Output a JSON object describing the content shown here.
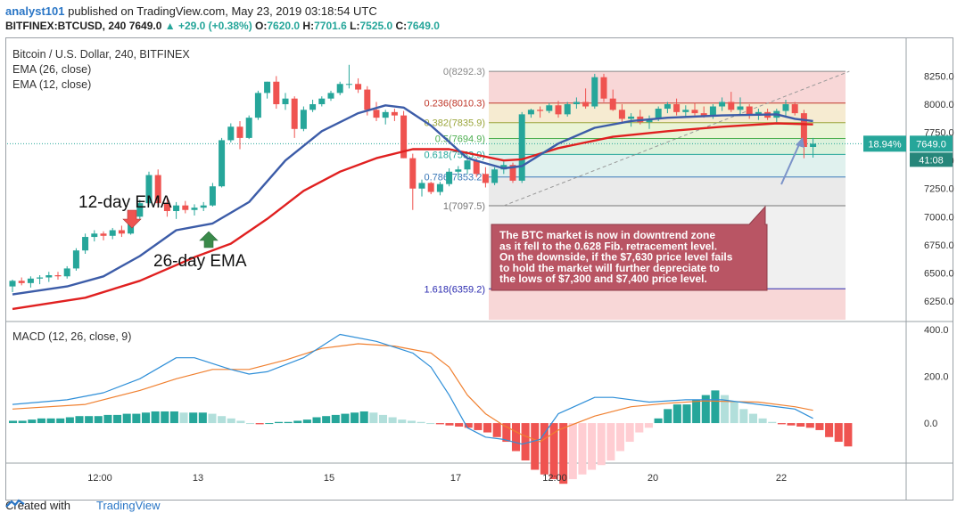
{
  "header": {
    "user": "analyst101",
    "published_text": "published on TradingView.com, May 23, 2019 03:18:54 UTC",
    "symbol": "BITFINEX:BTCUSD, 240",
    "price": "7649.0",
    "change": "▲ +29.0 (+0.38%)",
    "o_label": "O:",
    "o": "7620.0",
    "h_label": "H:",
    "h": "7701.6",
    "l_label": "L:",
    "l": "7525.0",
    "c_label": "C:",
    "c": "7649.0"
  },
  "legend": {
    "title": "Bitcoin / U.S. Dollar, 240, BITFINEX",
    "ema26": "EMA (26, close)",
    "ema12": "EMA (12, close)",
    "macd": "MACD (12, 26, close, 9)"
  },
  "annotations": {
    "ema12_label": "12-day EMA",
    "ema26_label": "26-day EMA",
    "note": [
      "The BTC market is now in downtrend zone",
      " as it fell to the 0.628 Fib. retracement level.",
      "On the downside, if the $7,630 price level fails",
      "to hold the market will further depreciate to",
      "the lows of $7,300 and $7,400 price level."
    ]
  },
  "badges": {
    "percent": "18.94%",
    "price": "7649.0",
    "timer": "41:08"
  },
  "footer": {
    "created_with": "Created with",
    "brand": "TradingView"
  },
  "colors": {
    "up": "#26a69a",
    "down": "#ef5350",
    "ema12": "#3c5ca8",
    "ema26": "#e02020",
    "macd_line": "#2f8fd8",
    "signal_line": "#f08030",
    "note_bg": "#b95564"
  },
  "chart_data": [
    {
      "type": "candlestick",
      "title": "Bitcoin / U.S. Dollar, 240, BITFINEX",
      "ylim": [
        6100,
        8380
      ],
      "y_ticks": [
        8250,
        8000,
        7750,
        7500,
        7250,
        7000,
        6750,
        6500,
        6250
      ],
      "y_tick_labels": [
        "8250.0",
        "8000.0",
        "7750.0",
        "7500.0",
        "7250.0",
        "7000.0",
        "6750.0",
        "6500.0",
        "6250.0"
      ],
      "x_tick_labels": [
        "12:00",
        "13",
        "15",
        "17",
        "12:00",
        "20",
        "22"
      ],
      "candles": [
        [
          6380,
          6440,
          6330,
          6430
        ],
        [
          6430,
          6460,
          6390,
          6410
        ],
        [
          6410,
          6470,
          6370,
          6450
        ],
        [
          6450,
          6480,
          6400,
          6460
        ],
        [
          6460,
          6510,
          6420,
          6480
        ],
        [
          6480,
          6510,
          6440,
          6470
        ],
        [
          6470,
          6560,
          6450,
          6540
        ],
        [
          6540,
          6720,
          6520,
          6700
        ],
        [
          6700,
          6850,
          6670,
          6820
        ],
        [
          6820,
          6880,
          6780,
          6850
        ],
        [
          6850,
          6870,
          6790,
          6830
        ],
        [
          6830,
          6900,
          6800,
          6880
        ],
        [
          6880,
          6920,
          6820,
          6850
        ],
        [
          6850,
          7030,
          6840,
          7000
        ],
        [
          7000,
          7150,
          6980,
          7120
        ],
        [
          7120,
          7400,
          7100,
          7370
        ],
        [
          7370,
          7420,
          7080,
          7120
        ],
        [
          7120,
          7180,
          7000,
          7050
        ],
        [
          7050,
          7130,
          6980,
          7100
        ],
        [
          7100,
          7140,
          7030,
          7060
        ],
        [
          7060,
          7110,
          7010,
          7080
        ],
        [
          7080,
          7130,
          7050,
          7100
        ],
        [
          7100,
          7300,
          7090,
          7270
        ],
        [
          7270,
          7700,
          7260,
          7680
        ],
        [
          7680,
          7830,
          7660,
          7800
        ],
        [
          7800,
          7850,
          7600,
          7700
        ],
        [
          7700,
          7900,
          7690,
          7880
        ],
        [
          7880,
          8120,
          7860,
          8100
        ],
        [
          8100,
          8200,
          8050,
          8200
        ],
        [
          8200,
          8250,
          7960,
          8000
        ],
        [
          8000,
          8100,
          7950,
          8050
        ],
        [
          8050,
          8070,
          7700,
          7780
        ],
        [
          7780,
          7980,
          7760,
          7950
        ],
        [
          7950,
          8040,
          7930,
          8000
        ],
        [
          8000,
          8070,
          7980,
          8050
        ],
        [
          8050,
          8120,
          8030,
          8100
        ],
        [
          8100,
          8200,
          8080,
          8180
        ],
        [
          8180,
          8350,
          8140,
          8180
        ],
        [
          8180,
          8230,
          8100,
          8130
        ],
        [
          8130,
          8160,
          7900,
          7950
        ],
        [
          7950,
          8020,
          7850,
          7880
        ],
        [
          7880,
          7950,
          7820,
          7930
        ],
        [
          7930,
          7960,
          7850,
          7900
        ],
        [
          7900,
          7940,
          7520,
          7520
        ],
        [
          7520,
          7560,
          7060,
          7250
        ],
        [
          7250,
          7330,
          7180,
          7300
        ],
        [
          7300,
          7310,
          7200,
          7220
        ],
        [
          7220,
          7310,
          7190,
          7290
        ],
        [
          7290,
          7430,
          7270,
          7400
        ],
        [
          7400,
          7450,
          7340,
          7420
        ],
        [
          7420,
          7520,
          7380,
          7500
        ],
        [
          7500,
          7520,
          7350,
          7380
        ],
        [
          7380,
          7440,
          7260,
          7300
        ],
        [
          7300,
          7440,
          7280,
          7420
        ],
        [
          7420,
          7490,
          7380,
          7460
        ],
        [
          7460,
          7480,
          7300,
          7320
        ],
        [
          7320,
          7930,
          7300,
          7910
        ],
        [
          7910,
          7960,
          7880,
          7950
        ],
        [
          7950,
          7980,
          7880,
          7940
        ],
        [
          7940,
          8010,
          7920,
          7990
        ],
        [
          7990,
          8030,
          7880,
          7910
        ],
        [
          7910,
          8020,
          7890,
          8000
        ],
        [
          8000,
          8060,
          7960,
          8020
        ],
        [
          8020,
          8140,
          7960,
          7980
        ],
        [
          7980,
          8270,
          7960,
          8240
        ],
        [
          8240,
          8270,
          8020,
          8050
        ],
        [
          8050,
          8130,
          7940,
          7950
        ],
        [
          7950,
          8000,
          7840,
          7870
        ],
        [
          7870,
          7920,
          7800,
          7890
        ],
        [
          7890,
          7950,
          7820,
          7840
        ],
        [
          7840,
          7900,
          7780,
          7870
        ],
        [
          7870,
          7980,
          7850,
          7960
        ],
        [
          7960,
          8020,
          7920,
          8000
        ],
        [
          8000,
          8050,
          7900,
          7930
        ],
        [
          7930,
          7990,
          7880,
          7950
        ],
        [
          7950,
          8010,
          7900,
          7920
        ],
        [
          7920,
          7980,
          7880,
          7900
        ],
        [
          7900,
          8000,
          7870,
          7980
        ],
        [
          7980,
          8060,
          7940,
          8020
        ],
        [
          8020,
          8110,
          7930,
          7950
        ],
        [
          7950,
          8060,
          7900,
          7980
        ],
        [
          7980,
          8000,
          7870,
          7900
        ],
        [
          7900,
          7960,
          7860,
          7930
        ],
        [
          7930,
          7960,
          7860,
          7880
        ],
        [
          7880,
          7960,
          7840,
          7940
        ],
        [
          7940,
          8040,
          7880,
          8000
        ],
        [
          8000,
          8020,
          7900,
          7920
        ],
        [
          7920,
          7950,
          7520,
          7620
        ],
        [
          7620,
          7700,
          7525,
          7649
        ]
      ],
      "ema12": [
        [
          0,
          6310
        ],
        [
          6,
          6380
        ],
        [
          10,
          6470
        ],
        [
          14,
          6650
        ],
        [
          18,
          6880
        ],
        [
          22,
          6940
        ],
        [
          26,
          7130
        ],
        [
          30,
          7500
        ],
        [
          34,
          7760
        ],
        [
          38,
          7920
        ],
        [
          41,
          7990
        ],
        [
          43,
          7970
        ],
        [
          46,
          7810
        ],
        [
          50,
          7520
        ],
        [
          54,
          7430
        ],
        [
          56,
          7450
        ],
        [
          60,
          7650
        ],
        [
          64,
          7790
        ],
        [
          68,
          7850
        ],
        [
          72,
          7880
        ],
        [
          78,
          7900
        ],
        [
          84,
          7910
        ],
        [
          86,
          7870
        ],
        [
          88,
          7850
        ]
      ],
      "ema26": [
        [
          0,
          6180
        ],
        [
          8,
          6280
        ],
        [
          14,
          6430
        ],
        [
          20,
          6640
        ],
        [
          24,
          6760
        ],
        [
          28,
          6980
        ],
        [
          32,
          7230
        ],
        [
          36,
          7400
        ],
        [
          40,
          7520
        ],
        [
          44,
          7600
        ],
        [
          48,
          7600
        ],
        [
          54,
          7500
        ],
        [
          56,
          7510
        ],
        [
          60,
          7610
        ],
        [
          66,
          7710
        ],
        [
          72,
          7760
        ],
        [
          78,
          7800
        ],
        [
          84,
          7830
        ],
        [
          88,
          7820
        ]
      ],
      "fibonacci": [
        {
          "level": "0",
          "price": 8292.3,
          "label": "0(8292.3)"
        },
        {
          "level": "0.236",
          "price": 8010.3,
          "label": "0.236(8010.3)"
        },
        {
          "level": "0.382",
          "price": 7835.9,
          "label": "0.382(7835.9)"
        },
        {
          "level": "0.5",
          "price": 7694.9,
          "label": "0.5(7694.9)"
        },
        {
          "level": "0.618",
          "price": 7553.9,
          "label": "0.618(7553.9)"
        },
        {
          "level": "0.786",
          "price": 7353.2,
          "label": "0.786(7353.2)"
        },
        {
          "level": "1",
          "price": 7097.5,
          "label": "1(7097.5)"
        },
        {
          "level": "1.618",
          "price": 6359.2,
          "label": "1.618(6359.2)"
        }
      ],
      "last_price": 7649.0
    },
    {
      "type": "line",
      "title": "MACD (12, 26, close, 9)",
      "ylim": [
        -160,
        420
      ],
      "y_ticks": [
        400,
        200,
        0
      ],
      "y_tick_labels": [
        "400.0",
        "200.0",
        "0.0"
      ],
      "macd": [
        [
          0,
          80
        ],
        [
          6,
          100
        ],
        [
          10,
          130
        ],
        [
          14,
          190
        ],
        [
          18,
          280
        ],
        [
          20,
          280
        ],
        [
          24,
          230
        ],
        [
          26,
          210
        ],
        [
          28,
          220
        ],
        [
          32,
          280
        ],
        [
          36,
          380
        ],
        [
          40,
          350
        ],
        [
          44,
          300
        ],
        [
          46,
          240
        ],
        [
          48,
          120
        ],
        [
          50,
          -20
        ],
        [
          52,
          -60
        ],
        [
          54,
          -70
        ],
        [
          56,
          -90
        ],
        [
          58,
          -70
        ],
        [
          60,
          40
        ],
        [
          64,
          110
        ],
        [
          66,
          110
        ],
        [
          70,
          90
        ],
        [
          74,
          100
        ],
        [
          78,
          100
        ],
        [
          82,
          80
        ],
        [
          86,
          60
        ],
        [
          88,
          20
        ]
      ],
      "signal": [
        [
          0,
          60
        ],
        [
          8,
          80
        ],
        [
          14,
          140
        ],
        [
          18,
          190
        ],
        [
          22,
          230
        ],
        [
          26,
          230
        ],
        [
          30,
          270
        ],
        [
          34,
          320
        ],
        [
          38,
          340
        ],
        [
          42,
          330
        ],
        [
          46,
          300
        ],
        [
          48,
          240
        ],
        [
          50,
          120
        ],
        [
          52,
          40
        ],
        [
          54,
          -10
        ],
        [
          56,
          -50
        ],
        [
          58,
          -80
        ],
        [
          60,
          -30
        ],
        [
          64,
          30
        ],
        [
          68,
          70
        ],
        [
          72,
          85
        ],
        [
          76,
          95
        ],
        [
          82,
          90
        ],
        [
          86,
          70
        ],
        [
          88,
          55
        ]
      ],
      "histogram": [
        10,
        10,
        15,
        20,
        20,
        20,
        25,
        30,
        30,
        30,
        35,
        35,
        40,
        40,
        45,
        50,
        50,
        50,
        45,
        45,
        45,
        40,
        30,
        20,
        10,
        0,
        -5,
        0,
        5,
        5,
        10,
        15,
        25,
        30,
        35,
        40,
        45,
        50,
        45,
        35,
        25,
        15,
        10,
        5,
        0,
        -5,
        -10,
        -15,
        -20,
        -30,
        -40,
        -60,
        -80,
        -120,
        -160,
        -200,
        -220,
        -240,
        -260,
        -240,
        -220,
        -200,
        -180,
        -160,
        -120,
        -80,
        -40,
        -20,
        20,
        60,
        80,
        80,
        100,
        120,
        140,
        120,
        90,
        60,
        40,
        20,
        5,
        -5,
        -10,
        -15,
        -20,
        -30,
        -60,
        -80,
        -100
      ]
    }
  ]
}
